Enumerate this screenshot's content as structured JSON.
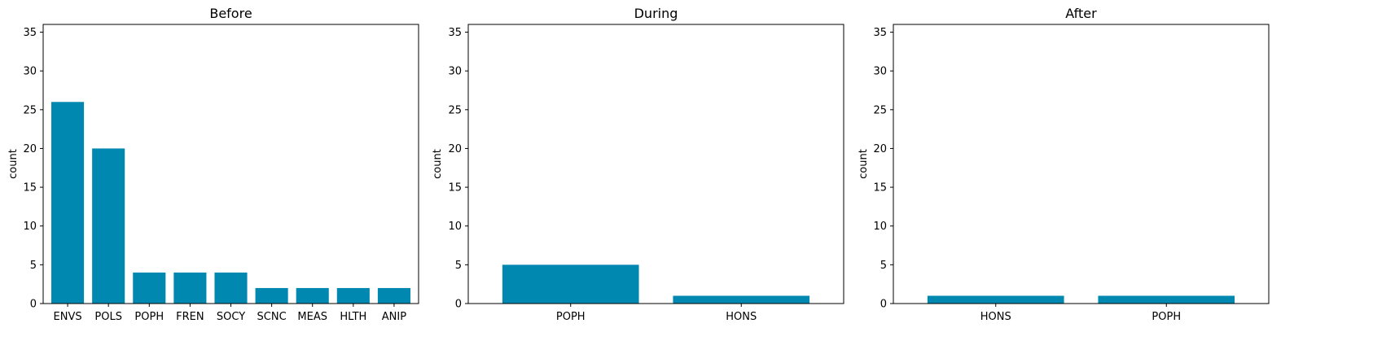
{
  "chart_data": [
    {
      "type": "bar",
      "title": "Before",
      "xlabel": "",
      "ylabel": "count",
      "ylim": [
        0,
        36
      ],
      "yticks": [
        0,
        5,
        10,
        15,
        20,
        25,
        30,
        35
      ],
      "grid": false,
      "categories": [
        "ENVS",
        "POLS",
        "POPH",
        "FREN",
        "SOCY",
        "SCNC",
        "MEAS",
        "HLTH",
        "ANIP"
      ],
      "values": [
        26,
        20,
        4,
        4,
        4,
        2,
        2,
        2,
        2
      ],
      "color": "#0088b0"
    },
    {
      "type": "bar",
      "title": "During",
      "xlabel": "",
      "ylabel": "count",
      "ylim": [
        0,
        36
      ],
      "yticks": [
        0,
        5,
        10,
        15,
        20,
        25,
        30,
        35
      ],
      "grid": false,
      "categories": [
        "POPH",
        "HONS"
      ],
      "values": [
        5,
        1
      ],
      "color": "#0088b0"
    },
    {
      "type": "bar",
      "title": "After",
      "xlabel": "",
      "ylabel": "count",
      "ylim": [
        0,
        36
      ],
      "yticks": [
        0,
        5,
        10,
        15,
        20,
        25,
        30,
        35
      ],
      "grid": false,
      "categories": [
        "HONS",
        "POPH"
      ],
      "values": [
        1,
        1
      ],
      "color": "#0088b0"
    }
  ]
}
